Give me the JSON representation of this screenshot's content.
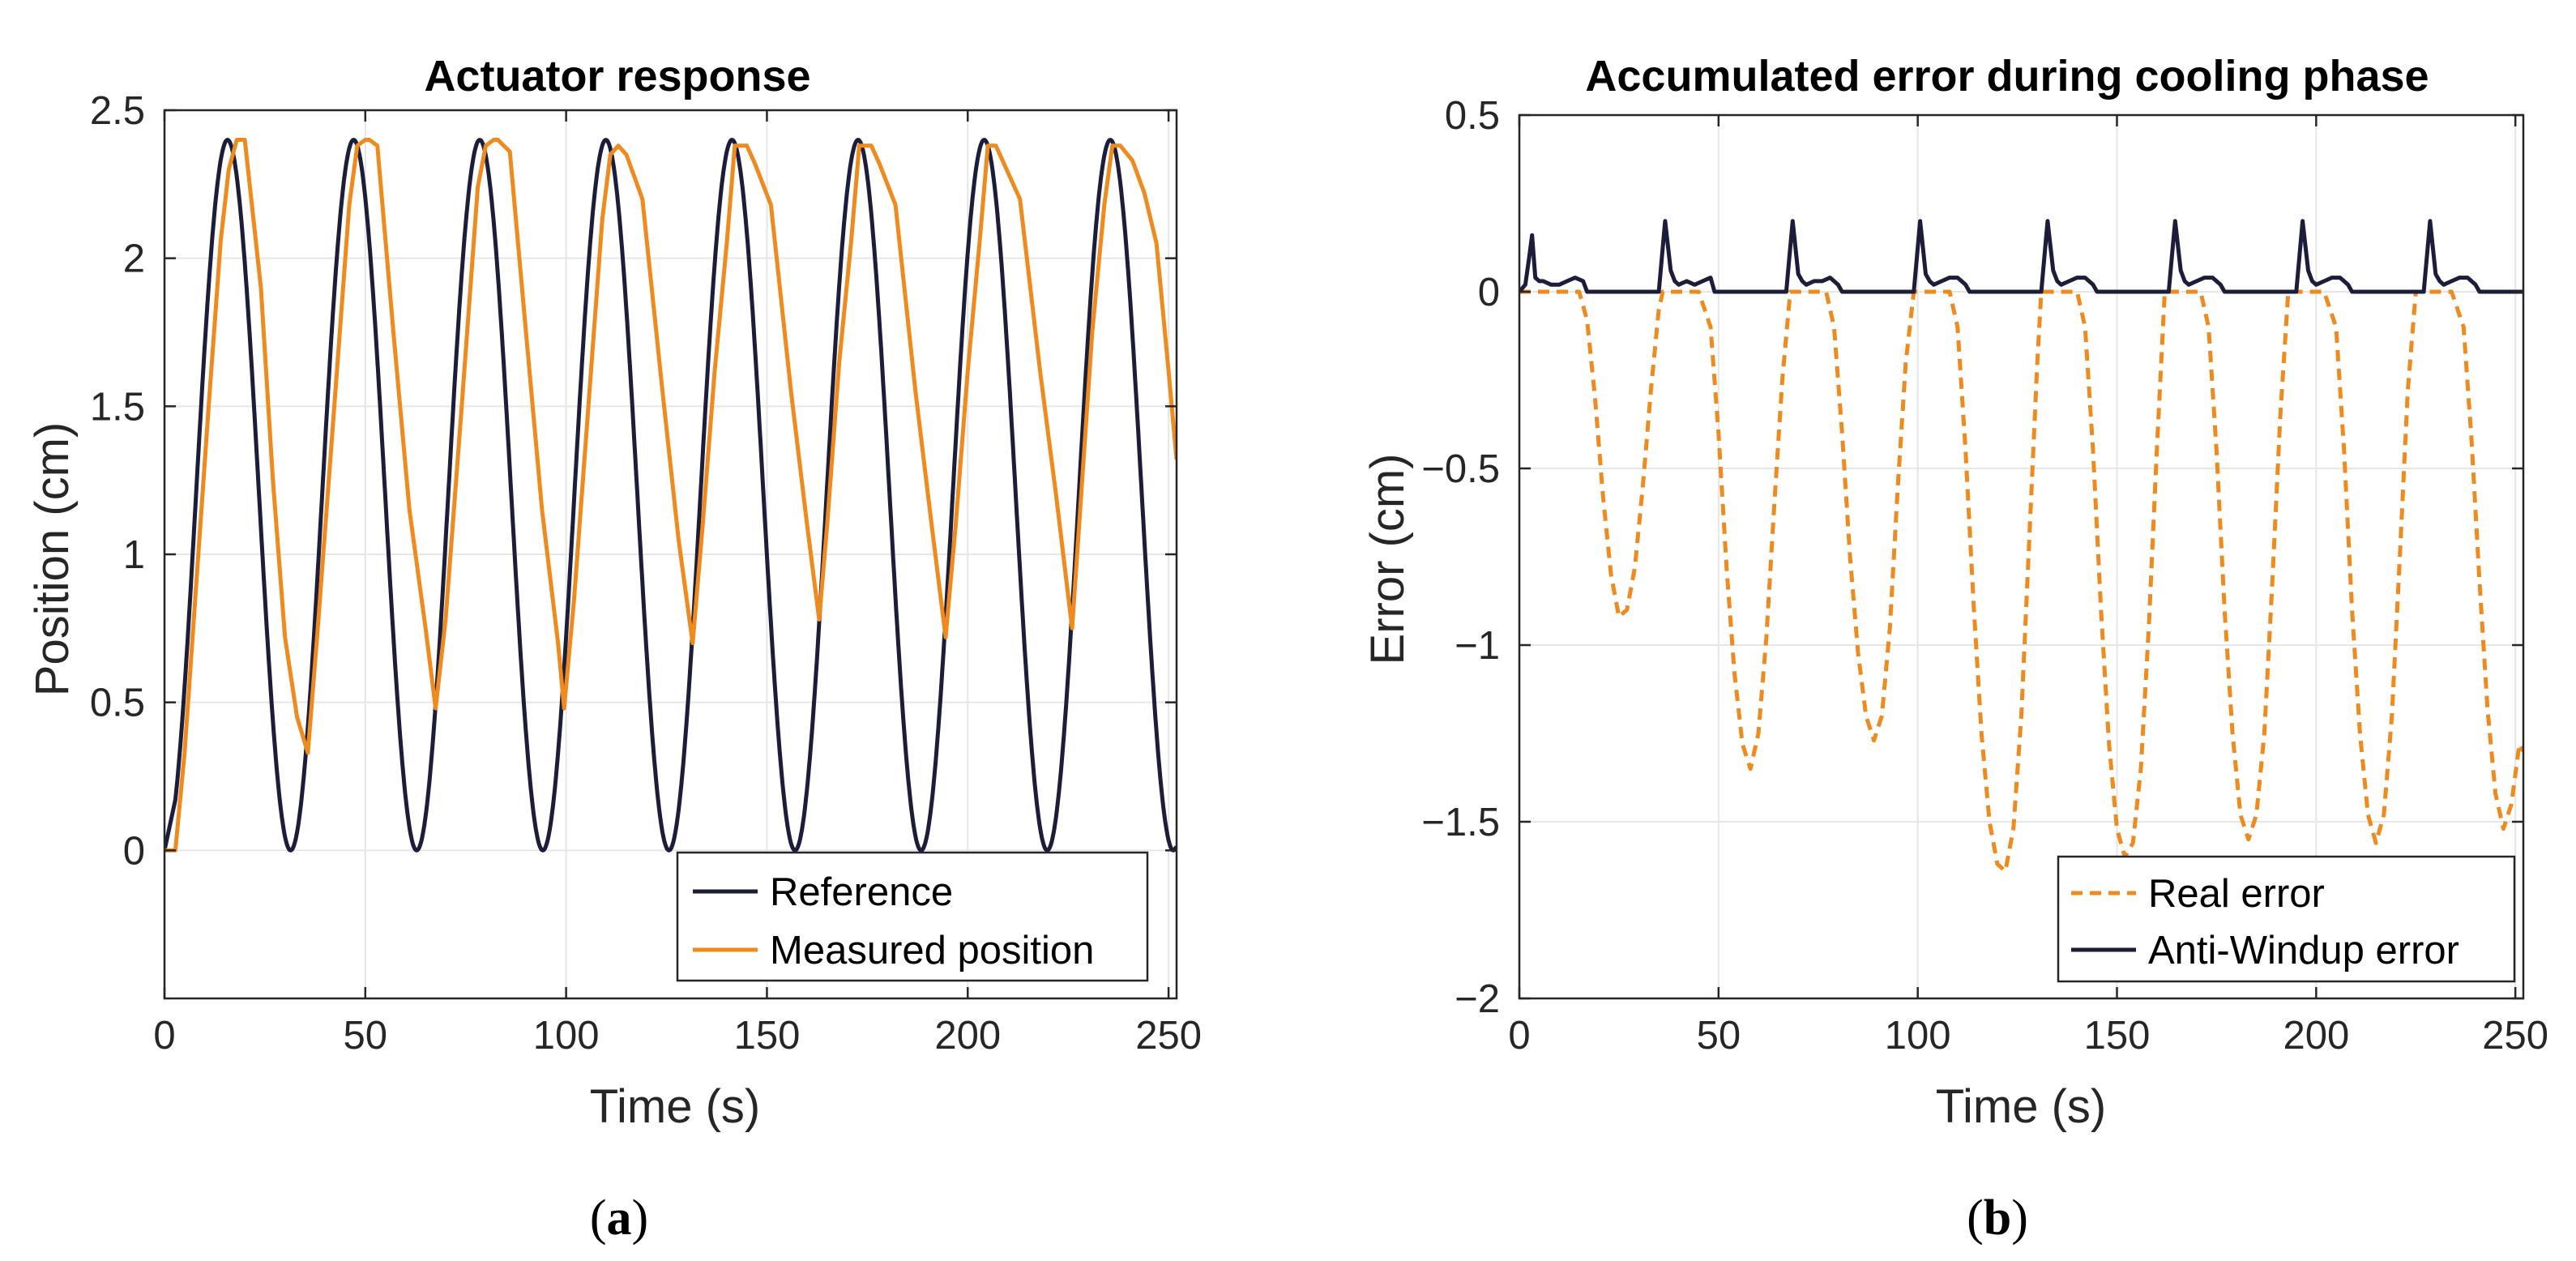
{
  "chart_data": [
    {
      "type": "line",
      "title": "Actuator response",
      "xlabel": "Time (s)",
      "ylabel": "Position (cm)",
      "xlim": [
        0,
        252
      ],
      "ylim": [
        -0.5,
        2.5
      ],
      "xticks": [
        0,
        50,
        100,
        150,
        200,
        250
      ],
      "xtick_labels": [
        "0",
        "50",
        "100",
        "150",
        "200",
        "250"
      ],
      "yticks": [
        0,
        0.5,
        1,
        1.5,
        2,
        2.5
      ],
      "ytick_labels": [
        "0",
        "0.5",
        "1",
        "1.5",
        "2",
        "2.5"
      ],
      "grid": true,
      "legend_position": "bottom-right",
      "panel_label": "a",
      "series": [
        {
          "name": "Reference",
          "color": "#1c1d3a",
          "style": "solid",
          "function": "cosine",
          "amplitude": 1.2,
          "offset": 1.2,
          "period": 31.4,
          "peak_time": 15.7,
          "t_start": 2.7,
          "t_end": 252
        },
        {
          "name": "Measured position",
          "color": "#ee8a1e",
          "style": "solid",
          "x": [
            0,
            2.7,
            5,
            8,
            11,
            14,
            16,
            18,
            20,
            24,
            27,
            30,
            33,
            35.7,
            38,
            42,
            46,
            48,
            50,
            51,
            53,
            57,
            61,
            65,
            67.5,
            70,
            74,
            78,
            80,
            82,
            83,
            86,
            90,
            94,
            98,
            99.5,
            102,
            105,
            109,
            111,
            113,
            115,
            119,
            124,
            128,
            131.5,
            134,
            137,
            140,
            142,
            145,
            147,
            151,
            156,
            160,
            163,
            165,
            168,
            171,
            173,
            176,
            178,
            182,
            187,
            191,
            194.5,
            197,
            200,
            203,
            205,
            207,
            209,
            213,
            218,
            222,
            226,
            228,
            231,
            234,
            236,
            238,
            241,
            244,
            247,
            250,
            252
          ],
          "y": [
            0,
            0,
            0.33,
            0.92,
            1.5,
            2.06,
            2.3,
            2.4,
            2.4,
            1.9,
            1.25,
            0.72,
            0.45,
            0.33,
            0.72,
            1.45,
            2.18,
            2.38,
            2.4,
            2.4,
            2.38,
            1.75,
            1.15,
            0.75,
            0.48,
            0.78,
            1.5,
            2.24,
            2.38,
            2.4,
            2.4,
            2.36,
            1.75,
            1.15,
            0.7,
            0.48,
            0.85,
            1.4,
            2.13,
            2.35,
            2.38,
            2.35,
            2.2,
            1.55,
            1.05,
            0.7,
            1.1,
            1.62,
            2.05,
            2.38,
            2.38,
            2.32,
            2.18,
            1.55,
            1.1,
            0.78,
            1.1,
            1.65,
            2.06,
            2.38,
            2.38,
            2.32,
            2.18,
            1.55,
            1.1,
            0.72,
            1.1,
            1.62,
            2.06,
            2.38,
            2.38,
            2.32,
            2.2,
            1.62,
            1.2,
            0.75,
            1.15,
            1.75,
            2.18,
            2.38,
            2.38,
            2.33,
            2.22,
            2.05,
            1.62,
            1.32
          ]
        }
      ]
    },
    {
      "type": "line",
      "title": "Accumulated error during cooling phase",
      "xlabel": "Time (s)",
      "ylabel": "Error (cm)",
      "xlim": [
        0,
        252
      ],
      "ylim": [
        -2,
        0.5
      ],
      "xticks": [
        0,
        50,
        100,
        150,
        200,
        250
      ],
      "xtick_labels": [
        "0",
        "50",
        "100",
        "150",
        "200",
        "250"
      ],
      "yticks": [
        -2,
        -1.5,
        -1,
        -0.5,
        0,
        0.5
      ],
      "ytick_labels": [
        "−2",
        "−1.5",
        "−1",
        "−0.5",
        "0",
        "0.5"
      ],
      "grid": true,
      "legend_position": "bottom-right",
      "panel_label": "b",
      "series": [
        {
          "name": "Real error",
          "color": "#ee8a1e",
          "style": "dashed",
          "x": [
            0,
            15,
            17,
            19,
            21,
            23,
            25,
            27,
            29,
            31,
            33,
            35,
            36,
            40,
            45,
            48,
            50,
            52,
            54,
            56,
            58,
            60,
            62,
            64,
            66,
            68,
            72,
            77,
            79,
            81,
            83,
            85,
            87,
            89,
            91,
            93,
            95,
            97,
            99,
            103,
            108,
            110,
            112,
            114,
            116,
            118,
            120,
            122,
            124,
            126,
            128,
            130,
            131,
            135,
            140,
            142,
            144,
            146,
            148,
            150,
            152,
            154,
            156,
            158,
            160,
            162,
            166,
            171,
            173,
            175,
            177,
            179,
            181,
            183,
            185,
            187,
            189,
            191,
            193,
            197,
            202,
            205,
            207,
            209,
            211,
            213,
            215,
            217,
            219,
            221,
            223,
            225,
            229,
            234,
            237,
            239,
            241,
            243,
            245,
            247,
            249,
            251,
            252
          ],
          "y": [
            0,
            0,
            -0.08,
            -0.3,
            -0.58,
            -0.8,
            -0.92,
            -0.9,
            -0.78,
            -0.55,
            -0.28,
            -0.05,
            0,
            0,
            0,
            -0.1,
            -0.4,
            -0.78,
            -1.08,
            -1.28,
            -1.35,
            -1.25,
            -0.98,
            -0.6,
            -0.25,
            0,
            0,
            0,
            -0.1,
            -0.4,
            -0.75,
            -1.02,
            -1.2,
            -1.27,
            -1.2,
            -0.95,
            -0.55,
            -0.2,
            0,
            0,
            0,
            -0.1,
            -0.45,
            -0.88,
            -1.25,
            -1.5,
            -1.62,
            -1.64,
            -1.52,
            -1.2,
            -0.7,
            -0.2,
            0,
            0,
            0,
            -0.1,
            -0.45,
            -0.9,
            -1.28,
            -1.52,
            -1.6,
            -1.56,
            -1.35,
            -0.95,
            -0.45,
            0,
            0,
            0,
            -0.1,
            -0.45,
            -0.9,
            -1.25,
            -1.48,
            -1.55,
            -1.48,
            -1.25,
            -0.82,
            -0.35,
            0,
            0,
            0,
            -0.1,
            -0.45,
            -0.9,
            -1.25,
            -1.48,
            -1.56,
            -1.48,
            -1.2,
            -0.75,
            -0.28,
            0,
            0,
            0,
            -0.1,
            -0.42,
            -0.82,
            -1.18,
            -1.42,
            -1.52,
            -1.45,
            -1.28,
            -1.3
          ]
        },
        {
          "name": "Anti-Windup error",
          "color": "#1c1d3a",
          "style": "solid",
          "x": [
            0,
            1.5,
            2.5,
            3.2,
            4,
            5,
            6,
            8,
            10,
            12,
            14,
            16,
            17,
            30,
            35,
            35.8,
            36.6,
            38,
            39,
            40,
            42,
            44,
            46,
            48,
            49,
            65,
            67,
            67.8,
            68.6,
            70,
            71,
            72,
            74,
            76,
            78,
            80,
            81,
            97,
            99,
            99.8,
            100.6,
            102,
            103,
            104,
            106,
            108,
            110,
            112,
            113,
            129,
            131,
            131.8,
            132.6,
            134,
            135,
            136,
            138,
            140,
            142,
            144,
            145,
            161,
            163,
            163.8,
            164.6,
            166,
            167,
            168,
            170,
            172,
            174,
            176,
            177,
            193,
            195,
            195.8,
            196.6,
            198,
            199,
            200,
            202,
            204,
            206,
            208,
            209,
            225,
            227,
            227.8,
            228.6,
            230,
            231,
            232,
            234,
            236,
            238,
            240,
            241,
            252
          ],
          "y": [
            0,
            0.02,
            0.1,
            0.16,
            0.04,
            0.03,
            0.03,
            0.02,
            0.02,
            0.03,
            0.04,
            0.03,
            0,
            0,
            0,
            0.1,
            0.2,
            0.06,
            0.03,
            0.02,
            0.03,
            0.02,
            0.03,
            0.04,
            0,
            0,
            0,
            0.1,
            0.2,
            0.05,
            0.03,
            0.02,
            0.03,
            0.03,
            0.04,
            0.02,
            0,
            0,
            0,
            0.1,
            0.2,
            0.05,
            0.03,
            0.02,
            0.03,
            0.04,
            0.04,
            0.02,
            0,
            0,
            0,
            0.1,
            0.2,
            0.06,
            0.03,
            0.02,
            0.03,
            0.04,
            0.04,
            0.02,
            0,
            0,
            0,
            0.1,
            0.2,
            0.06,
            0.03,
            0.02,
            0.03,
            0.04,
            0.04,
            0.02,
            0,
            0,
            0,
            0.1,
            0.2,
            0.06,
            0.03,
            0.02,
            0.03,
            0.04,
            0.04,
            0.02,
            0,
            0,
            0,
            0.1,
            0.2,
            0.05,
            0.03,
            0.02,
            0.03,
            0.04,
            0.04,
            0.02,
            0,
            0
          ]
        }
      ]
    }
  ]
}
